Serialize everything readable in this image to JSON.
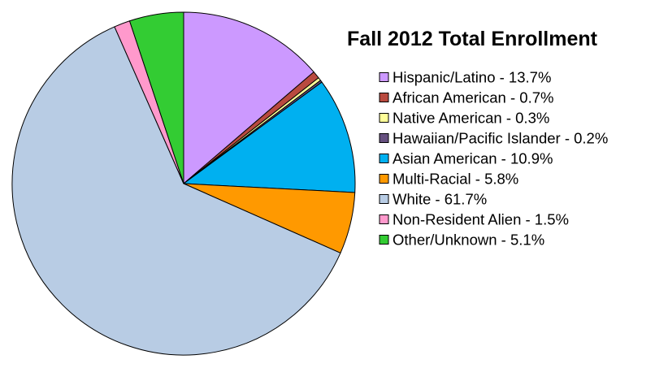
{
  "chart_data": {
    "type": "pie",
    "title": "Fall 2012 Total Enrollment",
    "start_angle_deg": 90,
    "direction": "clockwise",
    "legend_position": "right",
    "slices": [
      {
        "label": "Hispanic/Latino - 13.7%",
        "name": "Hispanic/Latino",
        "value": 13.7,
        "color": "#cc99ff"
      },
      {
        "label": "African American - 0.7%",
        "name": "African American",
        "value": 0.7,
        "color": "#b94a3f"
      },
      {
        "label": "Native American - 0.3%",
        "name": "Native American",
        "value": 0.3,
        "color": "#ffff99"
      },
      {
        "label": "Hawaiian/Pacific Islander - 0.2%",
        "name": "Hawaiian/Pacific Islander",
        "value": 0.2,
        "color": "#66507f"
      },
      {
        "label": "Asian American - 10.9%",
        "name": "Asian American",
        "value": 10.9,
        "color": "#00b0f0"
      },
      {
        "label": "Multi-Racial - 5.8%",
        "name": "Multi-Racial",
        "value": 5.8,
        "color": "#ff9900"
      },
      {
        "label": "White - 61.7%",
        "name": "White",
        "value": 61.7,
        "color": "#b8cce4"
      },
      {
        "label": "Non-Resident Alien - 1.5%",
        "name": "Non-Resident Alien",
        "value": 1.5,
        "color": "#ff99cc"
      },
      {
        "label": "Other/Unknown - 5.1%",
        "name": "Other/Unknown",
        "value": 5.1,
        "color": "#33cc33"
      }
    ]
  }
}
